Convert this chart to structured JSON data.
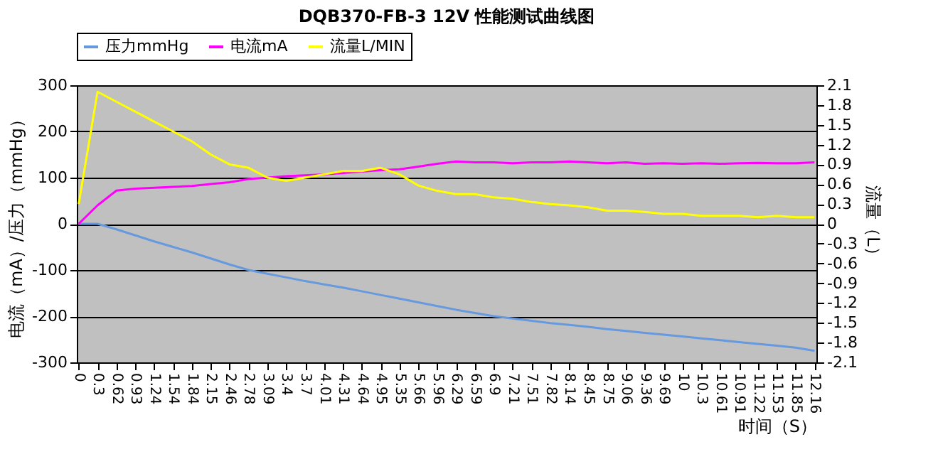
{
  "chart_data": {
    "type": "line",
    "title": "DQB370-FB-3 12V 性能测试曲线图",
    "xlabel": "时间（S）",
    "ylabel": "电流（mA）/压力（mmHg）",
    "y2label": "流量（L）",
    "categories": [
      "0",
      "0.3",
      "0.62",
      "0.93",
      "1.24",
      "1.54",
      "1.84",
      "2.15",
      "2.46",
      "2.78",
      "3.09",
      "3.4",
      "3.7",
      "4.01",
      "4.31",
      "4.64",
      "4.95",
      "5.35",
      "5.66",
      "5.96",
      "6.29",
      "6.59",
      "6.9",
      "7.21",
      "7.51",
      "7.82",
      "8.14",
      "8.45",
      "8.75",
      "9.06",
      "9.36",
      "9.69",
      "10",
      "10.3",
      "10.61",
      "10.91",
      "11.22",
      "11.53",
      "11.85",
      "12.16"
    ],
    "series": [
      {
        "name": "压力mmHg",
        "color": "#6699dd",
        "values": [
          0,
          0,
          -12,
          -25,
          -38,
          -50,
          -62,
          -75,
          -88,
          -100,
          -108,
          -116,
          -124,
          -131,
          -138,
          -146,
          -154,
          -162,
          -170,
          -178,
          -186,
          -193,
          -200,
          -205,
          -210,
          -215,
          -219,
          -223,
          -228,
          -232,
          -236,
          -240,
          -244,
          -248,
          -252,
          -256,
          -260,
          -264,
          -268,
          -275
        ]
      },
      {
        "name": "电流mA",
        "color": "#ff00ff",
        "values": [
          0,
          40,
          72,
          76,
          78,
          80,
          82,
          86,
          90,
          97,
          100,
          103,
          105,
          107,
          110,
          113,
          116,
          118,
          124,
          130,
          135,
          133,
          133,
          131,
          133,
          133,
          135,
          133,
          131,
          133,
          130,
          131,
          130,
          131,
          130,
          131,
          132,
          131,
          131,
          133
        ]
      },
      {
        "name": "流量L/MIN",
        "color": "#ffff00",
        "axis": "y2",
        "values": [
          0.3,
          2.0,
          1.85,
          1.7,
          1.55,
          1.4,
          1.25,
          1.05,
          0.9,
          0.85,
          0.7,
          0.65,
          0.7,
          0.75,
          0.8,
          0.8,
          0.85,
          0.75,
          0.58,
          0.5,
          0.45,
          0.45,
          0.4,
          0.38,
          0.33,
          0.3,
          0.28,
          0.25,
          0.2,
          0.2,
          0.18,
          0.15,
          0.15,
          0.12,
          0.12,
          0.12,
          0.1,
          0.12,
          0.1,
          0.1
        ]
      }
    ],
    "ylim": [
      -300,
      300
    ],
    "yticks": [
      -300,
      -200,
      -100,
      0,
      100,
      200,
      300
    ],
    "y2lim": [
      -2.1,
      2.1
    ],
    "y2ticks": [
      -2.1,
      -1.8,
      -1.5,
      -1.2,
      -0.9,
      -0.6,
      -0.3,
      0,
      0.3,
      0.6,
      0.9,
      1.2,
      1.5,
      1.8,
      2.1
    ],
    "grid": "y",
    "legend": "top",
    "marker": "none",
    "line_style": "solid"
  }
}
